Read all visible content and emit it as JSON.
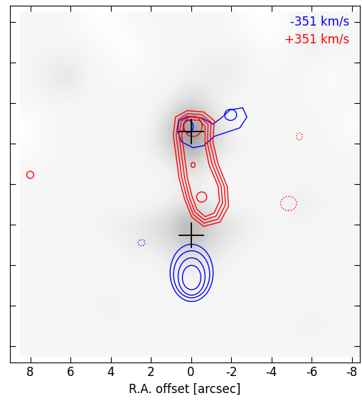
{
  "chart_data": {
    "type": "contour",
    "xlabel": "R.A. offset [arcsec]",
    "xlim": [
      9,
      -8.4
    ],
    "ylim": [
      -8.8,
      8.8
    ],
    "xticks": [
      8,
      6,
      4,
      2,
      0,
      -2,
      -4,
      -6,
      -8
    ],
    "yticks": [
      -8,
      -6,
      -4,
      -2,
      0,
      2,
      4,
      6,
      8
    ],
    "tick_labels": "x",
    "image": {
      "x": [
        8,
        7,
        6,
        5,
        4,
        3,
        2,
        1,
        0,
        -1,
        -2,
        -3,
        -4,
        -5,
        -6,
        -7,
        -8
      ],
      "y": [
        8,
        7,
        6,
        5,
        4,
        3,
        2,
        1,
        0,
        -1,
        -2,
        -3,
        -4,
        -5,
        -6,
        -7,
        -8
      ],
      "zlim": [
        0,
        14
      ],
      "values": [
        [
          1,
          1,
          1,
          0,
          0,
          1,
          1,
          1,
          1,
          1,
          1,
          0,
          0,
          1,
          1,
          1,
          1
        ],
        [
          1,
          1,
          1,
          1,
          0,
          0,
          1,
          1,
          1,
          1,
          1,
          1,
          0,
          1,
          2,
          1,
          1
        ],
        [
          1,
          2,
          2,
          1,
          1,
          0,
          1,
          1,
          1,
          2,
          2,
          1,
          1,
          1,
          1,
          1,
          1
        ],
        [
          1,
          2,
          3,
          1,
          1,
          1,
          1,
          1,
          2,
          2,
          2,
          1,
          1,
          1,
          1,
          0,
          1
        ],
        [
          1,
          1,
          1,
          1,
          1,
          1,
          1,
          2,
          4,
          2,
          1,
          1,
          1,
          1,
          1,
          1,
          1
        ],
        [
          0,
          1,
          1,
          1,
          1,
          1,
          1,
          4,
          8,
          4,
          1,
          1,
          1,
          1,
          1,
          1,
          0
        ],
        [
          0,
          1,
          1,
          1,
          1,
          1,
          2,
          4,
          8,
          4,
          2,
          1,
          1,
          1,
          1,
          1,
          1
        ],
        [
          1,
          1,
          1,
          1,
          1,
          1,
          1,
          2,
          4,
          2,
          1,
          1,
          1,
          1,
          1,
          1,
          1
        ],
        [
          1,
          1,
          1,
          1,
          1,
          1,
          1,
          1,
          2,
          1,
          1,
          1,
          1,
          1,
          1,
          1,
          1
        ],
        [
          1,
          1,
          1,
          1,
          1,
          1,
          1,
          2,
          3,
          2,
          1,
          1,
          1,
          2,
          2,
          1,
          1
        ],
        [
          1,
          1,
          1,
          1,
          2,
          2,
          3,
          4,
          7,
          4,
          3,
          2,
          1,
          1,
          1,
          1,
          1
        ],
        [
          1,
          1,
          1,
          1,
          1,
          2,
          2,
          3,
          5,
          3,
          2,
          1,
          1,
          1,
          1,
          1,
          1
        ],
        [
          1,
          1,
          1,
          1,
          1,
          1,
          1,
          2,
          2,
          2,
          1,
          1,
          1,
          1,
          1,
          1,
          1
        ],
        [
          1,
          1,
          1,
          1,
          1,
          1,
          1,
          1,
          1,
          1,
          1,
          1,
          1,
          1,
          1,
          1,
          1
        ],
        [
          1,
          1,
          1,
          1,
          2,
          1,
          1,
          1,
          1,
          1,
          1,
          1,
          1,
          1,
          1,
          1,
          1
        ],
        [
          1,
          1,
          1,
          1,
          1,
          1,
          1,
          1,
          1,
          1,
          1,
          1,
          1,
          1,
          2,
          1,
          1
        ],
        [
          1,
          1,
          1,
          1,
          1,
          1,
          1,
          1,
          1,
          1,
          1,
          1,
          1,
          1,
          1,
          1,
          1
        ]
      ]
    },
    "series": [
      {
        "name": "-351 km/s",
        "color": "blue",
        "shapes": [
          {
            "ellipse": {
              "center": [
                -0.03,
                -4.37
              ],
              "width": 2.14,
              "height": 2.82
            }
          },
          {
            "ellipse": {
              "center": [
                -0.03,
                -4.44
              ],
              "width": 1.8,
              "height": 2.32
            }
          },
          {
            "ellipse": {
              "center": [
                -0.03,
                -4.55
              ],
              "width": 1.34,
              "height": 1.84
            }
          },
          {
            "ellipse": {
              "center": [
                -0.03,
                -4.6
              ],
              "width": 0.92,
              "height": 1.2
            }
          },
          {
            "polygon": [
              [
                0.6,
                3.13
              ],
              [
                0.18,
                3.35
              ],
              [
                -0.53,
                3.27
              ],
              [
                -1.09,
                2.96
              ],
              [
                -1.51,
                3.27
              ],
              [
                -1.94,
                3.66
              ],
              [
                -2.57,
                3.77
              ],
              [
                -2.78,
                3.31
              ],
              [
                -2.43,
                2.78
              ],
              [
                -1.8,
                2.57
              ],
              [
                -1.16,
                2.36
              ],
              [
                -0.63,
                1.9
              ],
              [
                -0.11,
                1.8
              ],
              [
                0.46,
                2.08
              ],
              [
                0.67,
                2.61
              ]
            ]
          },
          {
            "ellipse": {
              "center": [
                -1.97,
                3.42
              ],
              "width": 0.6,
              "height": 0.55
            }
          },
          {
            "ellipse": {
              "center": [
                0.14,
                2.85
              ],
              "width": 0.5,
              "height": 0.6
            }
          },
          {
            "ellipse": {
              "center": [
                2.46,
                -2.89
              ],
              "width": 0.35,
              "height": 0.3
            },
            "line_style": "dotted"
          }
        ]
      },
      {
        "name": "+351 km/s",
        "color": "red",
        "shapes": [
          {
            "polygon": [
              [
                0.77,
                3.31
              ],
              [
                0.18,
                3.63
              ],
              [
                -0.63,
                3.56
              ],
              [
                -1.16,
                3.13
              ],
              [
                -1.09,
                2.08
              ],
              [
                -1.34,
                1.02
              ],
              [
                -1.8,
                -0.11
              ],
              [
                -1.87,
                -1.09
              ],
              [
                -1.44,
                -1.87
              ],
              [
                -0.63,
                -2.08
              ],
              [
                -0.04,
                -1.62
              ],
              [
                0.32,
                -0.74
              ],
              [
                0.6,
                0.32
              ],
              [
                0.74,
                1.37
              ],
              [
                0.88,
                2.43
              ]
            ]
          },
          {
            "polygon": [
              [
                0.62,
                3.2
              ],
              [
                0.18,
                3.48
              ],
              [
                -0.55,
                3.42
              ],
              [
                -1.0,
                3.05
              ],
              [
                -0.95,
                2.05
              ],
              [
                -1.2,
                1.0
              ],
              [
                -1.65,
                -0.1
              ],
              [
                -1.72,
                -1.0
              ],
              [
                -1.35,
                -1.72
              ],
              [
                -0.65,
                -1.92
              ],
              [
                -0.12,
                -1.5
              ],
              [
                0.2,
                -0.7
              ],
              [
                0.46,
                0.32
              ],
              [
                0.6,
                1.37
              ],
              [
                0.74,
                2.43
              ]
            ]
          },
          {
            "polygon": [
              [
                0.48,
                3.1
              ],
              [
                0.15,
                3.33
              ],
              [
                -0.48,
                3.28
              ],
              [
                -0.85,
                2.95
              ],
              [
                -0.82,
                2.0
              ],
              [
                -1.05,
                0.98
              ],
              [
                -1.5,
                -0.1
              ],
              [
                -1.57,
                -0.92
              ],
              [
                -1.25,
                -1.57
              ],
              [
                -0.67,
                -1.76
              ],
              [
                -0.2,
                -1.38
              ],
              [
                0.08,
                -0.66
              ],
              [
                0.32,
                0.32
              ],
              [
                0.46,
                1.37
              ],
              [
                0.6,
                2.43
              ]
            ]
          },
          {
            "polygon": [
              [
                0.35,
                3.0
              ],
              [
                0.1,
                3.18
              ],
              [
                -0.4,
                3.15
              ],
              [
                -0.7,
                2.85
              ],
              [
                -0.7,
                1.95
              ],
              [
                -0.9,
                0.95
              ],
              [
                -1.35,
                -0.1
              ],
              [
                -1.42,
                -0.84
              ],
              [
                -1.15,
                -1.42
              ],
              [
                -0.7,
                -1.6
              ],
              [
                -0.3,
                -1.25
              ],
              [
                -0.05,
                -0.6
              ],
              [
                0.18,
                0.32
              ],
              [
                0.32,
                1.37
              ],
              [
                0.46,
                2.43
              ]
            ]
          },
          {
            "ellipse": {
              "center": [
                -0.1,
                2.85
              ],
              "width": 0.9,
              "height": 1.0
            }
          },
          {
            "ellipse": {
              "center": [
                -0.1,
                0.95
              ],
              "width": 0.2,
              "height": 0.25
            }
          },
          {
            "ellipse": {
              "center": [
                -0.53,
                -0.63
              ],
              "width": 0.5,
              "height": 0.5
            }
          },
          {
            "ellipse": {
              "center": [
                8.0,
                0.46
              ],
              "width": 0.35,
              "height": 0.35
            }
          },
          {
            "ellipse": {
              "center": [
                -4.86,
                -0.95
              ],
              "width": 0.8,
              "height": 0.7
            },
            "line_style": "dotted"
          },
          {
            "ellipse": {
              "center": [
                -5.39,
                2.36
              ],
              "width": 0.3,
              "height": 0.35
            },
            "line_style": "dotted"
          }
        ]
      }
    ],
    "positions": {
      "x": [
        0,
        0
      ],
      "y": [
        2.6,
        -2.5
      ],
      "color": "black",
      "marker": "plus"
    }
  }
}
